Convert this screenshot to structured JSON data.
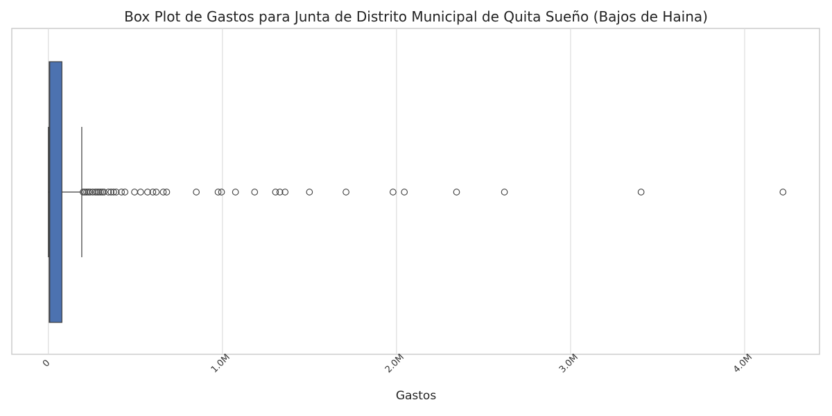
{
  "chart_data": {
    "type": "box",
    "orientation": "horizontal",
    "title": "Box Plot de Gastos para Junta de Distrito Municipal de Quita Sueño (Bajos de Haina)",
    "xlabel": "Gastos",
    "ylabel": "",
    "xlim": [
      -210000,
      4430000
    ],
    "xticks": [
      0,
      1000000,
      2000000,
      3000000,
      4000000
    ],
    "xtick_labels": [
      "0",
      "1.0M",
      "2.0M",
      "3.0M",
      "4.0M"
    ],
    "grid": "vertical",
    "box": {
      "min": 0,
      "q1": 5000,
      "median": 8000,
      "q3": 78000,
      "max": 192000
    },
    "outliers": [
      200000,
      210000,
      220000,
      230000,
      240000,
      255000,
      270000,
      280000,
      290000,
      300000,
      310000,
      320000,
      345000,
      360000,
      375000,
      390000,
      420000,
      440000,
      495000,
      530000,
      570000,
      600000,
      620000,
      660000,
      680000,
      850000,
      975000,
      995000,
      1075000,
      1185000,
      1305000,
      1330000,
      1360000,
      1500000,
      1710000,
      1980000,
      2045000,
      2345000,
      2620000,
      3405000,
      4220000
    ],
    "colors": {
      "box_fill": "#4c72b0",
      "line": "#3c3c3c",
      "grid": "#dcdcdc",
      "frame": "#cccccc"
    }
  }
}
